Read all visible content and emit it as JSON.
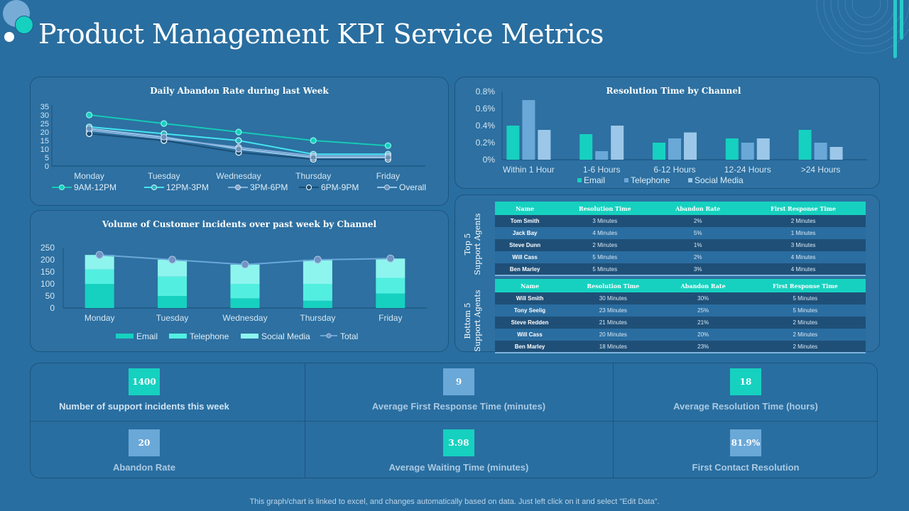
{
  "page": {
    "title": "Product Management KPI Service Metrics",
    "footer": "This graph/chart is linked to excel, and changes automatically based on data. Just left click on it and select \"Edit Data\"."
  },
  "colors": {
    "background": "#296ea0",
    "teal": "#16d1bf",
    "aqua": "#52efe0",
    "light_aqua": "#8ef5ee",
    "mid_blue": "#6aa8d8",
    "light_blue": "#9cc7e8"
  },
  "chart_data": [
    {
      "type": "line",
      "title": "Daily Abandon Rate during last Week",
      "categories": [
        "Monday",
        "Tuesday",
        "Wednesday",
        "Thursday",
        "Friday"
      ],
      "ylim": [
        0,
        35
      ],
      "yticks": [
        "0",
        "5",
        "10",
        "15",
        "20",
        "25",
        "30",
        "35"
      ],
      "legend_position": "bottom",
      "series": [
        {
          "name": "9AM-12PM",
          "values": [
            30,
            25,
            20,
            15,
            12
          ]
        },
        {
          "name": "12PM-3PM",
          "values": [
            23,
            19,
            15,
            7,
            7
          ]
        },
        {
          "name": "3PM-6PM",
          "values": [
            21,
            16,
            11,
            6,
            6
          ]
        },
        {
          "name": "6PM-9PM",
          "values": [
            19,
            15,
            8,
            4,
            4
          ]
        },
        {
          "name": "Overall",
          "values": [
            22,
            17,
            10,
            5,
            5
          ]
        }
      ]
    },
    {
      "type": "bar",
      "title": "Resolution Time by Channel",
      "categories": [
        "Within 1 Hour",
        "1-6 Hours",
        "6-12 Hours",
        "12-24 Hours",
        ">24 Hours"
      ],
      "ylim": [
        0,
        0.8
      ],
      "yticks": [
        "0%",
        "0.2%",
        "0.4%",
        "0.6%",
        "0.8%"
      ],
      "legend_position": "bottom",
      "series": [
        {
          "name": "Email",
          "values": [
            0.4,
            0.3,
            0.2,
            0.25,
            0.35
          ]
        },
        {
          "name": "Telephone",
          "values": [
            0.7,
            0.1,
            0.25,
            0.2,
            0.2
          ]
        },
        {
          "name": "Social Media",
          "values": [
            0.35,
            0.4,
            0.32,
            0.25,
            0.15
          ]
        }
      ]
    },
    {
      "type": "bar",
      "stacked": true,
      "title": "Volume of Customer incidents over past week by Channel",
      "categories": [
        "Monday",
        "Tuesday",
        "Wednesday",
        "Thursday",
        "Friday"
      ],
      "ylim": [
        0,
        250
      ],
      "yticks": [
        "0",
        "50",
        "100",
        "150",
        "200",
        "250"
      ],
      "legend_position": "bottom",
      "series": [
        {
          "name": "Email",
          "values": [
            100,
            50,
            40,
            30,
            60
          ]
        },
        {
          "name": "Telephone",
          "values": [
            60,
            80,
            60,
            70,
            65
          ]
        },
        {
          "name": "Social Media",
          "values": [
            60,
            70,
            80,
            100,
            80
          ]
        }
      ],
      "line_series": {
        "name": "Total",
        "values": [
          220,
          200,
          180,
          200,
          205
        ]
      }
    }
  ],
  "tables": {
    "headers": [
      "Name",
      "Resolution Time",
      "Abandon Rate",
      "First Response Time"
    ],
    "top": {
      "label_line1": "Top 5",
      "label_line2": "Support Agents",
      "rows": [
        [
          "Tom Smith",
          "3 Minutes",
          "2%",
          "2 Minutes"
        ],
        [
          "Jack Bay",
          "4 Minutes",
          "5%",
          "1 Minutes"
        ],
        [
          "Steve Dunn",
          "2 Minutes",
          "1%",
          "3 Minutes"
        ],
        [
          "Will Cass",
          "5 Minutes",
          "2%",
          "4 Minutes"
        ],
        [
          "Ben Marley",
          "5 Minutes",
          "3%",
          "4 Minutes"
        ]
      ]
    },
    "bottom": {
      "label_line1": "Bottom 5",
      "label_line2": "Support Agents",
      "rows": [
        [
          "Will Smith",
          "30 Minutes",
          "30%",
          "5 Minutes"
        ],
        [
          "Tony Seelig",
          "23 Minutes",
          "25%",
          "5 Minutes"
        ],
        [
          "Steve Redden",
          "21 Minutes",
          "21%",
          "2 Minutes"
        ],
        [
          "Will Cass",
          "20 Minutes",
          "20%",
          "2 Minutes"
        ],
        [
          "Ben Marley",
          "18 Minutes",
          "23%",
          "2 Minutes"
        ]
      ]
    }
  },
  "kpis": [
    {
      "value": "1400",
      "label": "Number of support  incidents this week",
      "color": "#16d1bf"
    },
    {
      "value": "9",
      "label": "Average First Response  Time (minutes)",
      "color": "#6aa8d8"
    },
    {
      "value": "18",
      "label": "Average Resolution  Time (hours)",
      "color": "#16d1bf"
    },
    {
      "value": "20",
      "label": "Abandon Rate",
      "color": "#6aa8d8"
    },
    {
      "value": "3.98",
      "label": "Average Waiting Time (minutes)",
      "color": "#16d1bf"
    },
    {
      "value": "81.9%",
      "label": "First Contact  Resolution",
      "color": "#6aa8d8"
    }
  ]
}
